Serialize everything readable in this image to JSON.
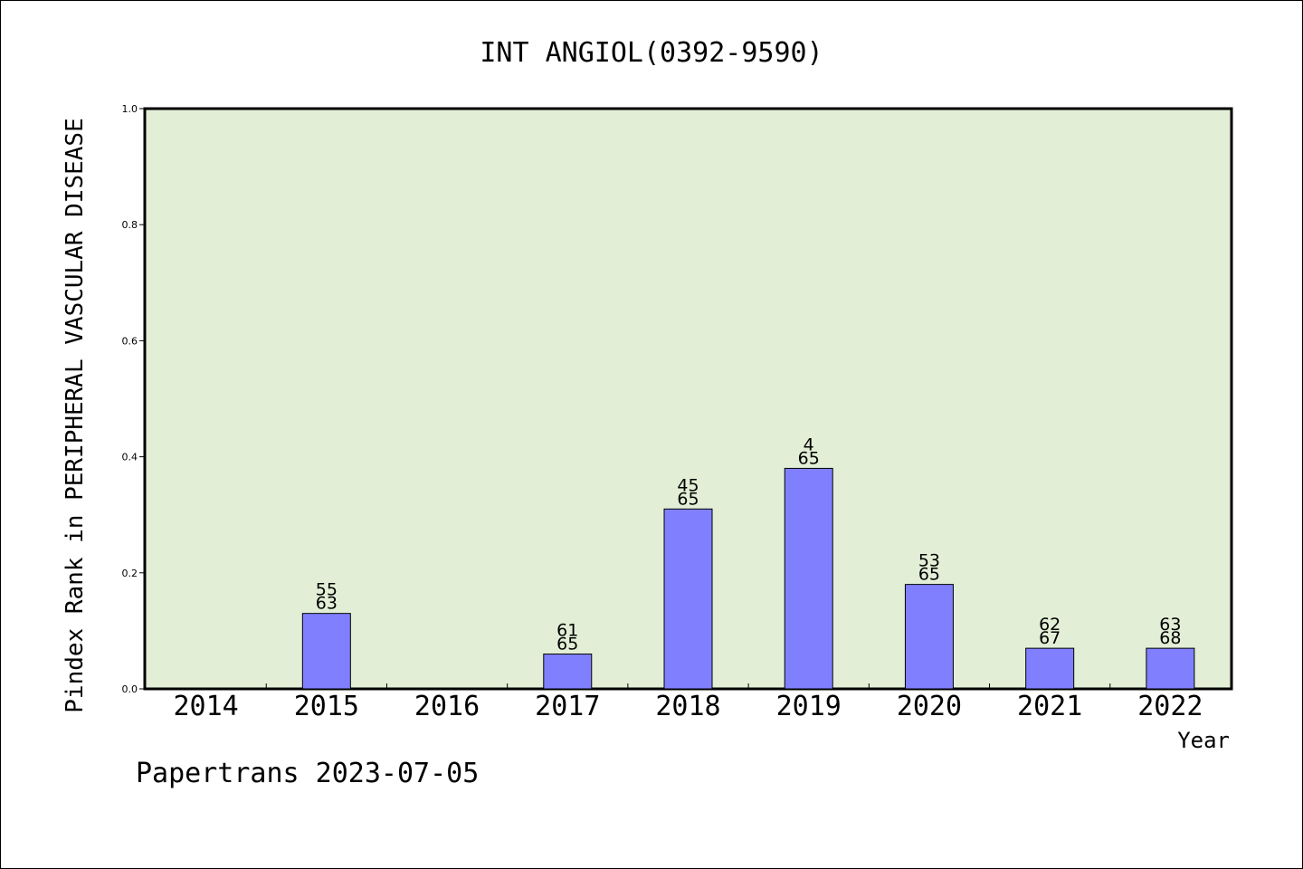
{
  "chart_data": {
    "type": "bar",
    "title": "INT ANGIOL(0392-9590)",
    "xlabel": "Year",
    "ylabel": "Pindex Rank in PERIPHERAL VASCULAR DISEASE",
    "footer": "Papertrans 2023-07-05",
    "categories": [
      "2014",
      "2015",
      "2016",
      "2017",
      "2018",
      "2019",
      "2020",
      "2021",
      "2022"
    ],
    "values": [
      0,
      0.13,
      0,
      0.06,
      0.31,
      0.38,
      0.18,
      0.07,
      0.07
    ],
    "rank": [
      "",
      "55",
      "",
      "61",
      "45",
      "4",
      "53",
      "62",
      "63"
    ],
    "total": [
      "",
      "63",
      "",
      "65",
      "65",
      "65",
      "65",
      "67",
      "68"
    ],
    "ylim": [
      0,
      1.0
    ],
    "yticks": [
      "0.0",
      "0.2",
      "0.4",
      "0.6",
      "0.8",
      "1.0"
    ],
    "grid": false,
    "colors": {
      "plot_background": "#e2efd6",
      "bar_fill": "#8080ff",
      "bar_stroke": "#000000"
    }
  }
}
